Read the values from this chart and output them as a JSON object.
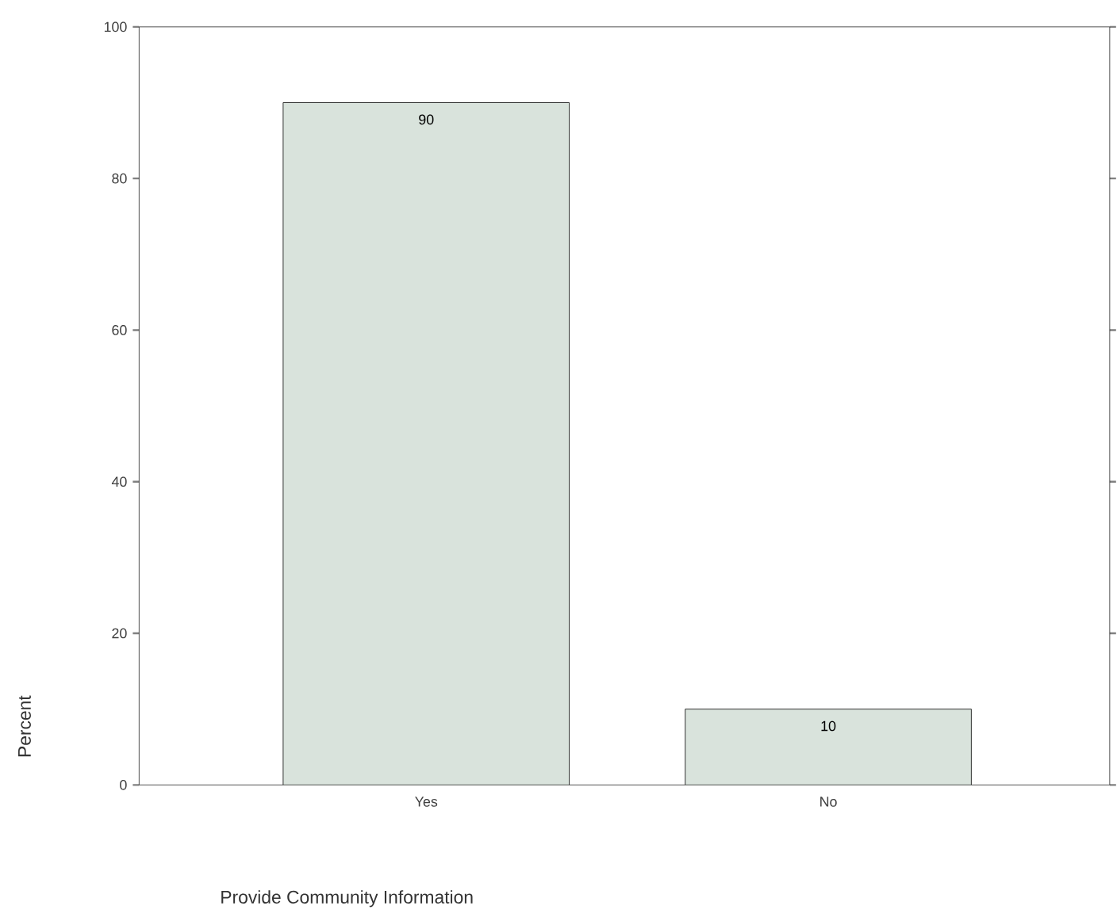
{
  "chart_data": {
    "type": "bar",
    "xlabel": "Provide Community Information",
    "ylabel": "Percent",
    "categories": [
      "Yes",
      "No"
    ],
    "values": [
      90,
      10
    ],
    "color": "#d9e3dc",
    "data_labels": true,
    "ylim": [
      0,
      100
    ],
    "yticks": [
      0,
      20,
      40,
      60,
      80,
      100
    ],
    "grid": false
  }
}
